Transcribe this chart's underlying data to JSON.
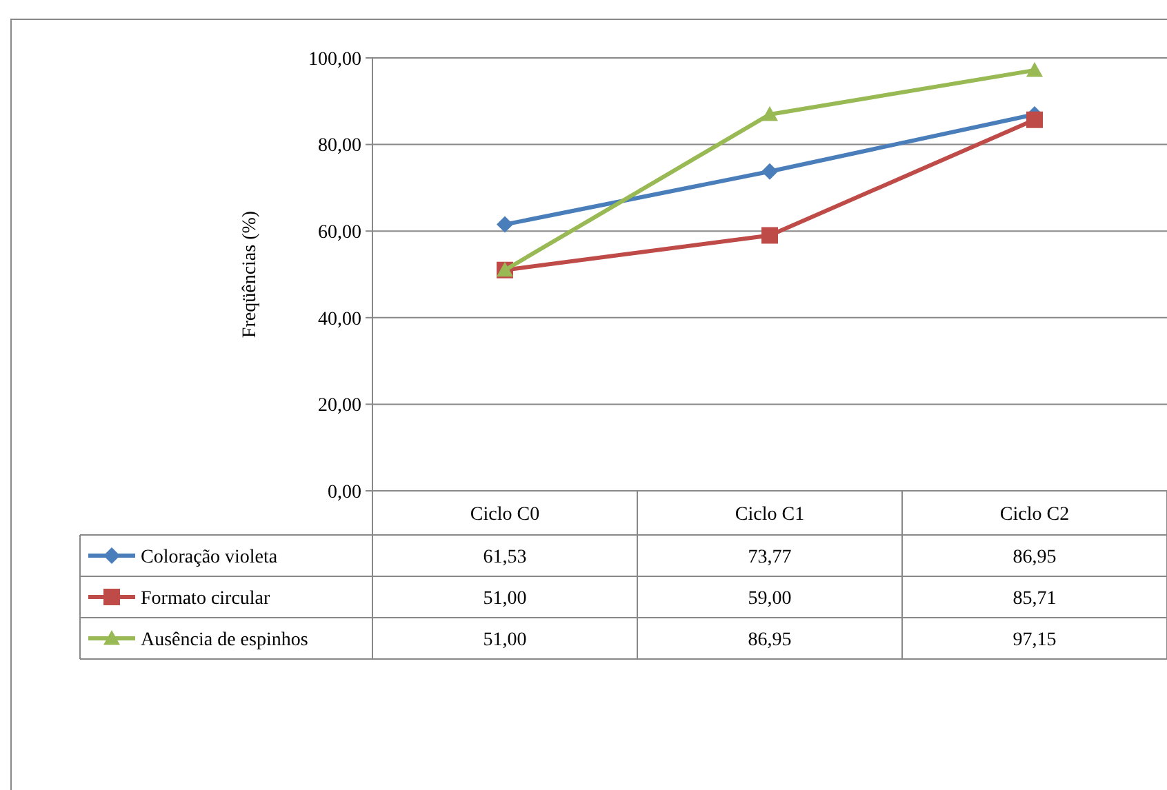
{
  "chart_data": {
    "type": "line",
    "ylabel": "Freqüências (%)",
    "categories": [
      "Ciclo C0",
      "Ciclo C1",
      "Ciclo C2"
    ],
    "series": [
      {
        "name": "Coloração violeta",
        "color": "#4a7ebb",
        "marker": "diamond",
        "values": [
          61.53,
          73.77,
          86.95
        ],
        "value_labels": [
          "61,53",
          "73,77",
          "86,95"
        ]
      },
      {
        "name": "Formato circular",
        "color": "#be4b48",
        "marker": "square",
        "values": [
          51.0,
          59.0,
          85.71
        ],
        "value_labels": [
          "51,00",
          "59,00",
          "85,71"
        ]
      },
      {
        "name": "Ausência de espinhos",
        "color": "#98b954",
        "marker": "triangle",
        "values": [
          51.0,
          86.95,
          97.15
        ],
        "value_labels": [
          "51,00",
          "86,95",
          "97,15"
        ]
      }
    ],
    "ylim": [
      0,
      100
    ],
    "yticks": [
      {
        "value": 0,
        "label": "0,00"
      },
      {
        "value": 20,
        "label": "20,00"
      },
      {
        "value": 40,
        "label": "40,00"
      },
      {
        "value": 60,
        "label": "60,00"
      },
      {
        "value": 80,
        "label": "80,00"
      },
      {
        "value": 100,
        "label": "100,00"
      }
    ],
    "grid": "y",
    "legend": "bottom"
  }
}
